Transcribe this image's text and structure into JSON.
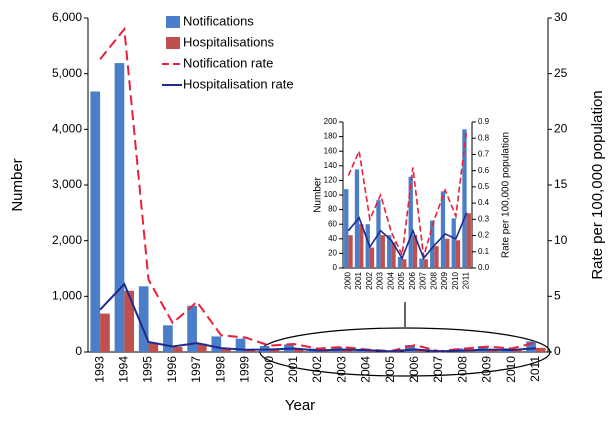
{
  "chart_data": [
    {
      "type": "bar",
      "x_label": "Year",
      "y_label": "Number",
      "y2_label": "Rate per 100,000 population",
      "categories": [
        "1993",
        "1994",
        "1995",
        "1996",
        "1997",
        "1998",
        "1999",
        "2000",
        "2001",
        "2002",
        "2003",
        "2004",
        "2005",
        "2006",
        "2007",
        "2008",
        "2009",
        "2010",
        "2011"
      ],
      "series": [
        {
          "name": "Notifications",
          "type": "bar",
          "color": "#4a7ec8",
          "values": [
            4680,
            5190,
            1180,
            480,
            830,
            280,
            240,
            108,
            135,
            60,
            93,
            45,
            15,
            125,
            13,
            65,
            105,
            68,
            190
          ]
        },
        {
          "name": "Hospitalisations",
          "type": "bar",
          "color": "#c0504d",
          "values": [
            690,
            1100,
            170,
            90,
            150,
            60,
            40,
            45,
            60,
            28,
            45,
            35,
            12,
            45,
            12,
            30,
            40,
            38,
            75
          ]
        },
        {
          "name": "Notification rate",
          "type": "line",
          "dash": true,
          "axis": "y2",
          "color": "#e8203a",
          "values": [
            26.3,
            29,
            6.5,
            2.6,
            4.5,
            1.5,
            1.3,
            0.57,
            0.72,
            0.3,
            0.45,
            0.22,
            0.08,
            0.62,
            0.07,
            0.3,
            0.48,
            0.32,
            0.85
          ]
        },
        {
          "name": "Hospitalisation rate",
          "type": "line",
          "axis": "y2",
          "color": "#1f2a8c",
          "values": [
            3.8,
            6.1,
            0.9,
            0.5,
            0.8,
            0.35,
            0.2,
            0.23,
            0.31,
            0.13,
            0.23,
            0.17,
            0.06,
            0.23,
            0.06,
            0.14,
            0.21,
            0.18,
            0.34
          ]
        }
      ],
      "ylim": [
        0,
        6000
      ],
      "yticks": [
        0,
        {
          "value": 1000,
          "label": "1,000"
        },
        {
          "value": 2000,
          "label": "2,000"
        },
        {
          "value": 3000,
          "label": "3,000"
        },
        {
          "value": 4000,
          "label": "4,000"
        },
        {
          "value": 5000,
          "label": "5,000"
        },
        {
          "value": 6000,
          "label": "6,000"
        }
      ],
      "y2lim": [
        0,
        30
      ],
      "y2ticks": [
        0,
        5,
        10,
        15,
        20,
        25,
        30
      ],
      "legend": "upper left",
      "grid": false
    },
    {
      "type": "bar",
      "y_label": "Number",
      "y2_label": "Rate per 100,000  population",
      "categories": [
        "2000",
        "2001",
        "2002",
        "2003",
        "2004",
        "2005",
        "2006",
        "2007",
        "2008",
        "2009",
        "2010",
        "2011"
      ],
      "series": [
        {
          "type": "bar",
          "color": "#4a7ec8",
          "values": [
            108,
            135,
            60,
            93,
            45,
            15,
            125,
            13,
            65,
            105,
            68,
            190
          ]
        },
        {
          "type": "bar",
          "color": "#c0504d",
          "values": [
            45,
            60,
            28,
            45,
            35,
            12,
            45,
            12,
            30,
            40,
            38,
            75
          ]
        },
        {
          "type": "line",
          "dash": true,
          "axis": "y2",
          "color": "#e8203a",
          "values": [
            0.57,
            0.72,
            0.3,
            0.45,
            0.22,
            0.08,
            0.62,
            0.07,
            0.3,
            0.48,
            0.32,
            0.85
          ]
        },
        {
          "type": "line",
          "axis": "y2",
          "color": "#1f2a8c",
          "values": [
            0.23,
            0.31,
            0.13,
            0.23,
            0.17,
            0.06,
            0.23,
            0.06,
            0.14,
            0.21,
            0.18,
            0.34
          ]
        }
      ],
      "ylim": [
        0,
        200
      ],
      "yticks": [
        0,
        20,
        40,
        60,
        80,
        100,
        120,
        140,
        160,
        180,
        200
      ],
      "y2lim": [
        0,
        0.9
      ],
      "y2ticks": [
        {
          "value": 0,
          "label": "0.0"
        },
        0.1,
        0.2,
        0.3,
        0.4,
        0.5,
        0.6,
        0.7,
        0.8,
        0.9
      ],
      "grid": false
    }
  ]
}
